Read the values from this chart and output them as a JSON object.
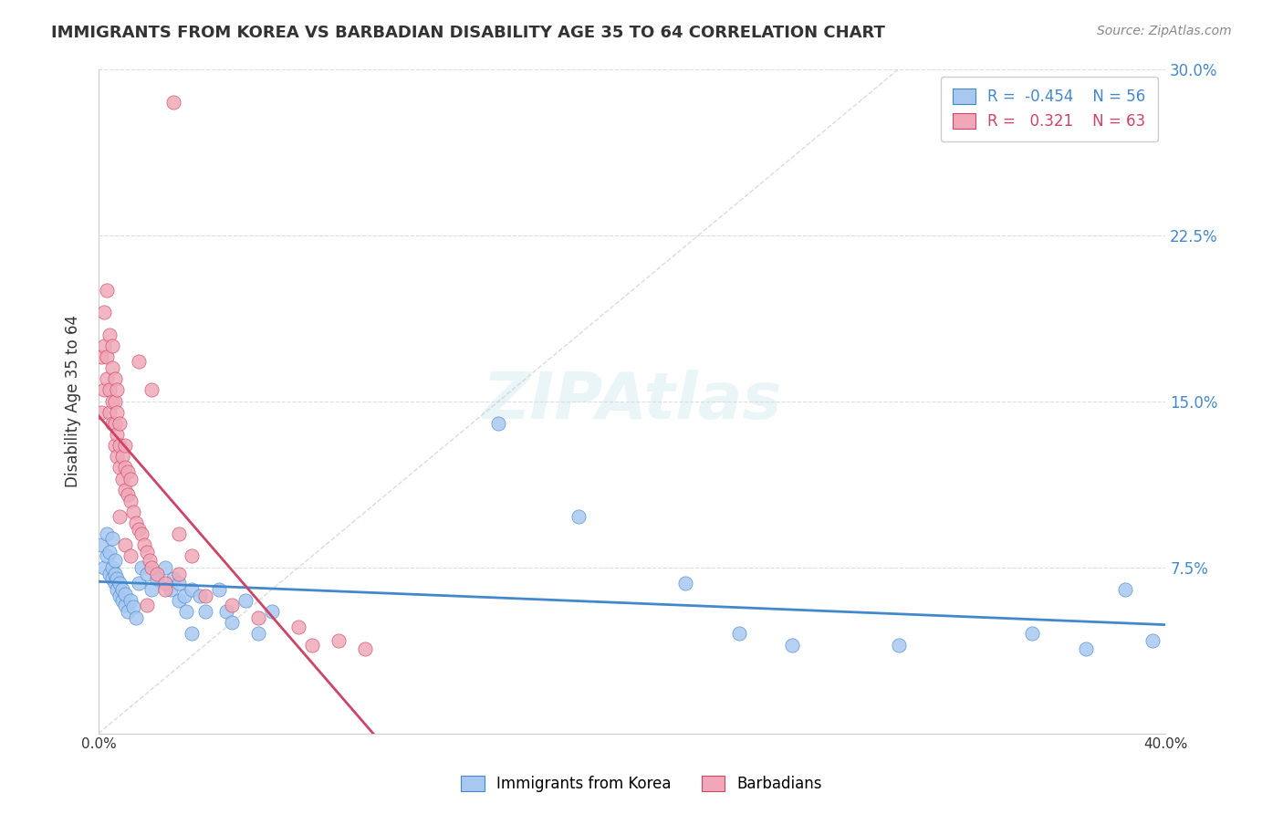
{
  "title": "IMMIGRANTS FROM KOREA VS BARBADIAN DISABILITY AGE 35 TO 64 CORRELATION CHART",
  "source": "Source: ZipAtlas.com",
  "xlabel": "",
  "ylabel": "Disability Age 35 to 64",
  "xlim": [
    0,
    0.4
  ],
  "ylim": [
    0,
    0.3
  ],
  "R_blue": -0.454,
  "N_blue": 56,
  "R_pink": 0.321,
  "N_pink": 63,
  "blue_color": "#a8c8f0",
  "pink_color": "#f0a8b8",
  "blue_line_color": "#4488cc",
  "pink_line_color": "#cc4466",
  "background_color": "#ffffff",
  "grid_color": "#dddddd",
  "blue_scatter_x": [
    0.001,
    0.002,
    0.003,
    0.003,
    0.004,
    0.004,
    0.005,
    0.005,
    0.005,
    0.006,
    0.006,
    0.006,
    0.007,
    0.007,
    0.008,
    0.008,
    0.009,
    0.009,
    0.01,
    0.01,
    0.011,
    0.012,
    0.013,
    0.014,
    0.015,
    0.016,
    0.018,
    0.02,
    0.022,
    0.025,
    0.027,
    0.028,
    0.03,
    0.03,
    0.032,
    0.033,
    0.035,
    0.035,
    0.038,
    0.04,
    0.045,
    0.048,
    0.05,
    0.055,
    0.06,
    0.065,
    0.15,
    0.18,
    0.22,
    0.24,
    0.26,
    0.3,
    0.35,
    0.37,
    0.385,
    0.395
  ],
  "blue_scatter_y": [
    0.085,
    0.075,
    0.08,
    0.09,
    0.072,
    0.082,
    0.07,
    0.075,
    0.088,
    0.068,
    0.072,
    0.078,
    0.065,
    0.07,
    0.062,
    0.068,
    0.06,
    0.065,
    0.058,
    0.063,
    0.055,
    0.06,
    0.057,
    0.052,
    0.068,
    0.075,
    0.072,
    0.065,
    0.07,
    0.075,
    0.065,
    0.07,
    0.06,
    0.068,
    0.062,
    0.055,
    0.065,
    0.045,
    0.062,
    0.055,
    0.065,
    0.055,
    0.05,
    0.06,
    0.045,
    0.055,
    0.14,
    0.098,
    0.068,
    0.045,
    0.04,
    0.04,
    0.045,
    0.038,
    0.065,
    0.042
  ],
  "pink_scatter_x": [
    0.001,
    0.001,
    0.002,
    0.002,
    0.002,
    0.003,
    0.003,
    0.003,
    0.004,
    0.004,
    0.004,
    0.005,
    0.005,
    0.005,
    0.005,
    0.006,
    0.006,
    0.006,
    0.006,
    0.007,
    0.007,
    0.007,
    0.007,
    0.008,
    0.008,
    0.008,
    0.009,
    0.009,
    0.01,
    0.01,
    0.01,
    0.011,
    0.011,
    0.012,
    0.012,
    0.013,
    0.014,
    0.015,
    0.016,
    0.017,
    0.018,
    0.019,
    0.02,
    0.022,
    0.025,
    0.028,
    0.03,
    0.035,
    0.04,
    0.05,
    0.06,
    0.075,
    0.08,
    0.09,
    0.1,
    0.015,
    0.02,
    0.008,
    0.01,
    0.012,
    0.018,
    0.025,
    0.03
  ],
  "pink_scatter_y": [
    0.145,
    0.17,
    0.155,
    0.175,
    0.19,
    0.16,
    0.17,
    0.2,
    0.145,
    0.155,
    0.18,
    0.14,
    0.15,
    0.165,
    0.175,
    0.13,
    0.14,
    0.15,
    0.16,
    0.125,
    0.135,
    0.145,
    0.155,
    0.12,
    0.13,
    0.14,
    0.115,
    0.125,
    0.11,
    0.12,
    0.13,
    0.108,
    0.118,
    0.105,
    0.115,
    0.1,
    0.095,
    0.092,
    0.09,
    0.085,
    0.082,
    0.078,
    0.075,
    0.072,
    0.068,
    0.285,
    0.09,
    0.08,
    0.062,
    0.058,
    0.052,
    0.048,
    0.04,
    0.042,
    0.038,
    0.168,
    0.155,
    0.098,
    0.085,
    0.08,
    0.058,
    0.065,
    0.072
  ]
}
